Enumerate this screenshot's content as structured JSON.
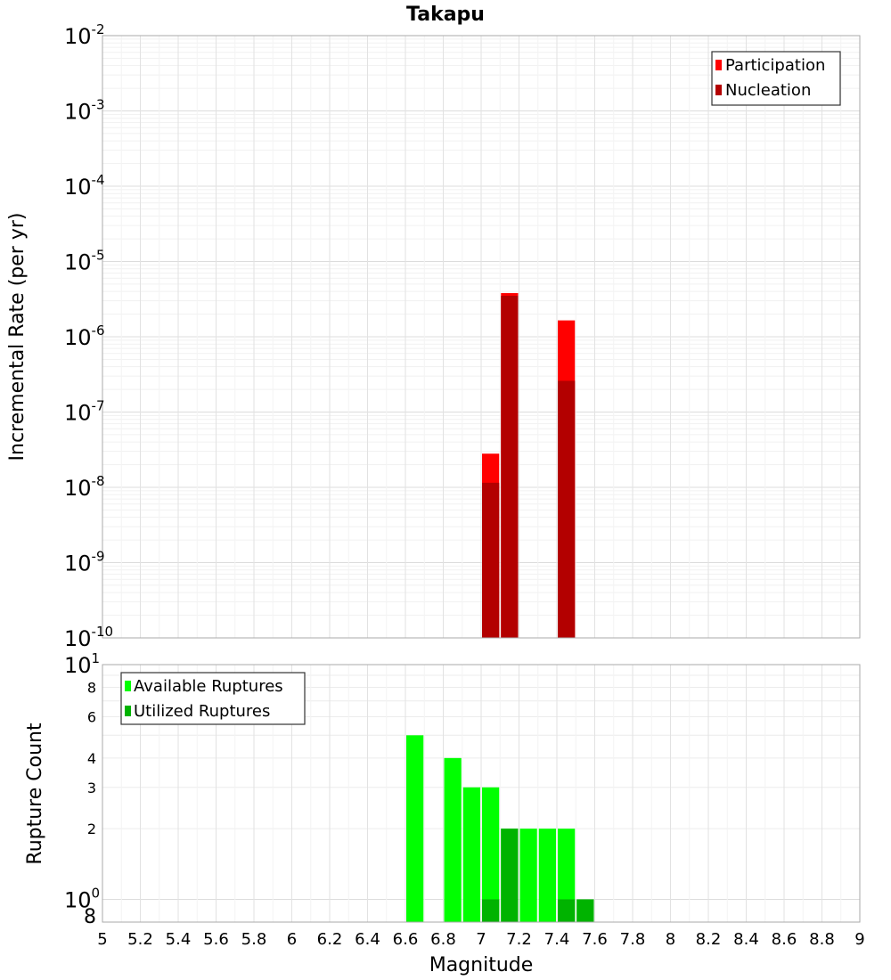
{
  "chart_data": [
    {
      "type": "bar",
      "title": "Takapu",
      "ylabel": "Incremental Rate (per yr)",
      "y_scale": "log",
      "ylim": [
        1e-10,
        0.01
      ],
      "y_ticks": [
        {
          "base": "10",
          "exp": "-2"
        },
        {
          "base": "10",
          "exp": "-3"
        },
        {
          "base": "10",
          "exp": "-4"
        },
        {
          "base": "10",
          "exp": "-5"
        },
        {
          "base": "10",
          "exp": "-6"
        },
        {
          "base": "10",
          "exp": "-7"
        },
        {
          "base": "10",
          "exp": "-8"
        },
        {
          "base": "10",
          "exp": "-9"
        },
        {
          "base": "10",
          "exp": "-10"
        }
      ],
      "xlim": [
        5,
        9
      ],
      "grid": true,
      "legend_position": "top-right",
      "series": [
        {
          "name": "Participation",
          "color": "#ff0000",
          "x": [
            7.05,
            7.15,
            7.45
          ],
          "values": [
            2.8e-08,
            3.8e-06,
            1.65e-06
          ]
        },
        {
          "name": "Nucleation",
          "color": "#b30000",
          "x": [
            7.05,
            7.15,
            7.45
          ],
          "values": [
            1.15e-08,
            3.5e-06,
            2.6e-07
          ]
        }
      ]
    },
    {
      "type": "bar",
      "xlabel": "Magnitude",
      "ylabel": "Rupture Count",
      "y_scale": "log",
      "ylim": [
        0.8,
        10
      ],
      "y_major_ticks": [
        {
          "base": "10",
          "exp": "1"
        },
        {
          "base": "10",
          "exp": "0"
        }
      ],
      "y_minor_ticks": [
        "8",
        "6",
        "4",
        "3",
        "2",
        "8"
      ],
      "xlim": [
        5,
        9
      ],
      "x_ticks": [
        "5",
        "5.2",
        "5.4",
        "5.6",
        "5.8",
        "6",
        "6.2",
        "6.4",
        "6.6",
        "6.8",
        "7",
        "7.2",
        "7.4",
        "7.6",
        "7.8",
        "8",
        "8.2",
        "8.4",
        "8.6",
        "8.8",
        "9"
      ],
      "grid": true,
      "legend_position": "top-left",
      "series": [
        {
          "name": "Available Ruptures",
          "color": "#00ff00",
          "x": [
            6.65,
            6.85,
            6.95,
            7.05,
            7.15,
            7.25,
            7.35,
            7.45,
            7.55
          ],
          "values": [
            5,
            4,
            3,
            3,
            2,
            2,
            2,
            2,
            1
          ]
        },
        {
          "name": "Utilized Ruptures",
          "color": "#00b300",
          "x": [
            7.05,
            7.15,
            7.45,
            7.55
          ],
          "values": [
            1,
            2,
            1,
            1
          ]
        }
      ]
    }
  ]
}
